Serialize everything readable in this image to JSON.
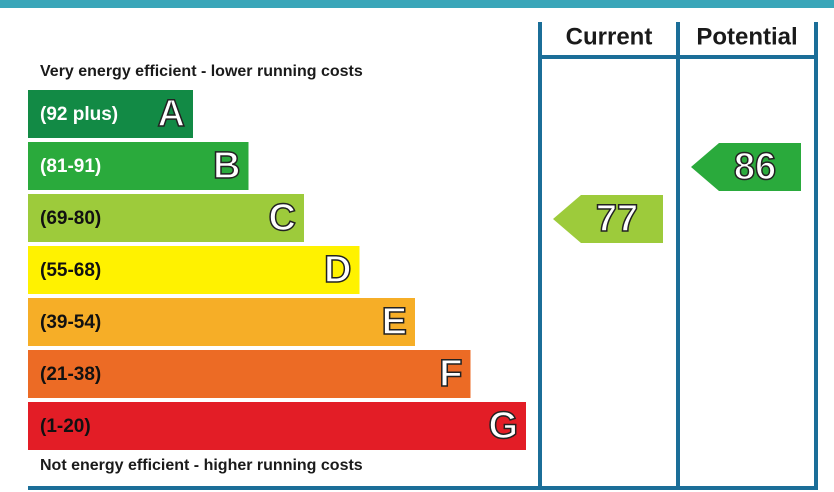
{
  "chart_data": {
    "type": "epc",
    "top_note": "Very energy efficient - lower running costs",
    "bottom_note": "Not energy efficient - higher running costs",
    "columns": [
      "Current",
      "Potential"
    ],
    "bands": [
      {
        "label": "(92 plus)",
        "letter": "A",
        "color": "#128a45",
        "text_color": "#ffffff"
      },
      {
        "label": "(81-91)",
        "letter": "B",
        "color": "#2aaa3c",
        "text_color": "#ffffff"
      },
      {
        "label": "(69-80)",
        "letter": "C",
        "color": "#9dcb3b",
        "text_color": "#111111"
      },
      {
        "label": "(55-68)",
        "letter": "D",
        "color": "#fff200",
        "text_color": "#111111"
      },
      {
        "label": "(39-54)",
        "letter": "E",
        "color": "#f6ae27",
        "text_color": "#111111"
      },
      {
        "label": "(21-38)",
        "letter": "F",
        "color": "#ec6b25",
        "text_color": "#111111"
      },
      {
        "label": "(1-20)",
        "letter": "G",
        "color": "#e31d26",
        "text_color": "#111111"
      }
    ],
    "values": [
      77,
      86
    ]
  }
}
